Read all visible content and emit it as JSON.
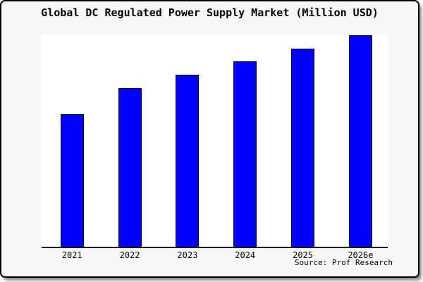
{
  "chart": {
    "title": "Global DC Regulated Power Supply Market (Million USD)",
    "source": "Source: Prof Research",
    "colors": {
      "bar_fill": "#0000ff",
      "bar_border": "#000000",
      "frame_background": "#f8f8f8",
      "plot_background": "#ffffff",
      "axis": "#000000",
      "text": "#000000"
    }
  },
  "chart_data": {
    "type": "bar",
    "title": "Global DC Regulated Power Supply Market (Million USD)",
    "categories": [
      "2021",
      "2022",
      "2023",
      "2024",
      "2025",
      "2026e"
    ],
    "values": [
      62.7,
      75.0,
      81.2,
      87.7,
      93.7,
      100.0
    ],
    "units": "relative index (no y-axis tick labels shown in chart)",
    "xlabel": "",
    "ylabel": "",
    "ylim": [
      0,
      100.7
    ],
    "y_axis_visible": false,
    "grid": false,
    "legend": false,
    "annotation": "Source: Prof Research"
  }
}
